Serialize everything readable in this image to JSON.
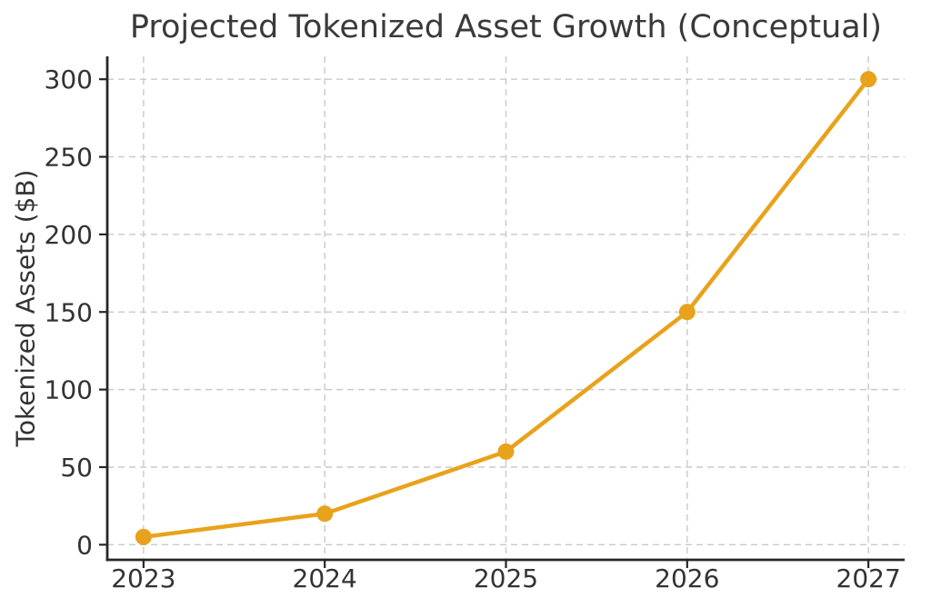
{
  "chart_data": {
    "type": "line",
    "title": "Projected Tokenized Asset Growth (Conceptual)",
    "xlabel": "",
    "ylabel": "Tokenized Assets ($B)",
    "x": [
      2023,
      2024,
      2025,
      2026,
      2027
    ],
    "y": [
      5,
      20,
      60,
      150,
      300
    ],
    "xticks": [
      2023,
      2024,
      2025,
      2026,
      2027
    ],
    "yticks": [
      0,
      50,
      100,
      150,
      200,
      250,
      300
    ],
    "xlim": [
      2022.8,
      2027.2
    ],
    "ylim": [
      -9.75,
      314.75
    ],
    "grid": true,
    "grid_style": "dashed",
    "legend": false,
    "marker": "circle",
    "colors": {
      "line": "#E8A21B",
      "marker": "#E8A21B",
      "grid": "#C9C9C9",
      "spine": "#262626",
      "text": "#333333",
      "background": "#FFFFFF"
    }
  }
}
